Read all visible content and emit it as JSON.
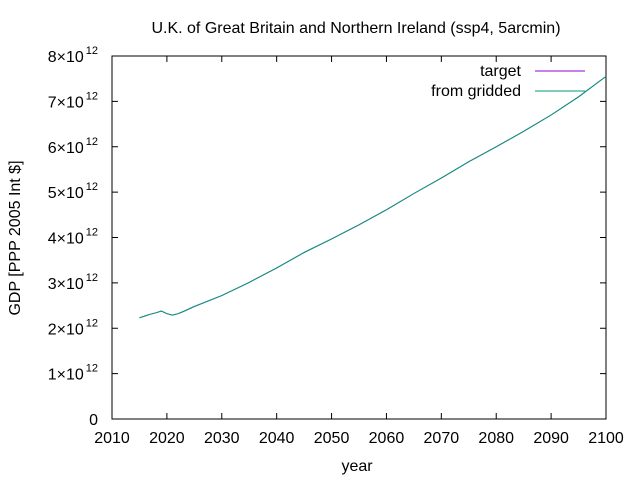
{
  "chart_data": {
    "type": "line",
    "title": "U.K. of Great Britain and Northern Ireland (ssp4, 5arcmin)",
    "xlabel": "year",
    "ylabel": "GDP [PPP 2005 Int $]",
    "xlim": [
      2010,
      2100
    ],
    "ylim": [
      0,
      8000000000000.0
    ],
    "x_ticks": [
      2010,
      2020,
      2030,
      2040,
      2050,
      2060,
      2070,
      2080,
      2090,
      2100
    ],
    "x_tick_labels": [
      "2010",
      "2020",
      "2030",
      "2040",
      "2050",
      "2060",
      "2070",
      "2080",
      "2090",
      "2100"
    ],
    "y_ticks": [
      0,
      1000000000000.0,
      2000000000000.0,
      3000000000000.0,
      4000000000000.0,
      5000000000000.0,
      6000000000000.0,
      7000000000000.0,
      8000000000000.0
    ],
    "y_tick_labels": [
      {
        "mantissa": "0",
        "exponent": ""
      },
      {
        "mantissa": "1×10",
        "exponent": "12"
      },
      {
        "mantissa": "2×10",
        "exponent": "12"
      },
      {
        "mantissa": "3×10",
        "exponent": "12"
      },
      {
        "mantissa": "4×10",
        "exponent": "12"
      },
      {
        "mantissa": "5×10",
        "exponent": "12"
      },
      {
        "mantissa": "6×10",
        "exponent": "12"
      },
      {
        "mantissa": "7×10",
        "exponent": "12"
      },
      {
        "mantissa": "8×10",
        "exponent": "12"
      }
    ],
    "grid": false,
    "legend_position": "top-right",
    "series": [
      {
        "name": "target",
        "color": "#9400d3",
        "x": [
          2015,
          2016,
          2017,
          2018,
          2019,
          2020,
          2021,
          2022,
          2023,
          2025,
          2030,
          2035,
          2040,
          2045,
          2050,
          2055,
          2060,
          2065,
          2070,
          2075,
          2080,
          2085,
          2090,
          2095,
          2100
        ],
        "y": [
          2230000000000.0,
          2270000000000.0,
          2310000000000.0,
          2340000000000.0,
          2380000000000.0,
          2320000000000.0,
          2290000000000.0,
          2320000000000.0,
          2370000000000.0,
          2480000000000.0,
          2720000000000.0,
          3010000000000.0,
          3330000000000.0,
          3670000000000.0,
          3970000000000.0,
          4280000000000.0,
          4610000000000.0,
          4970000000000.0,
          5310000000000.0,
          5670000000000.0,
          6000000000000.0,
          6340000000000.0,
          6700000000000.0,
          7100000000000.0,
          7550000000000.0
        ]
      },
      {
        "name": "from gridded",
        "color": "#009e73",
        "x": [
          2015,
          2016,
          2017,
          2018,
          2019,
          2020,
          2021,
          2022,
          2023,
          2025,
          2030,
          2035,
          2040,
          2045,
          2050,
          2055,
          2060,
          2065,
          2070,
          2075,
          2080,
          2085,
          2090,
          2095,
          2100
        ],
        "y": [
          2230000000000.0,
          2270000000000.0,
          2310000000000.0,
          2340000000000.0,
          2380000000000.0,
          2320000000000.0,
          2290000000000.0,
          2320000000000.0,
          2370000000000.0,
          2480000000000.0,
          2720000000000.0,
          3010000000000.0,
          3330000000000.0,
          3670000000000.0,
          3970000000000.0,
          4280000000000.0,
          4610000000000.0,
          4970000000000.0,
          5310000000000.0,
          5670000000000.0,
          6000000000000.0,
          6340000000000.0,
          6700000000000.0,
          7100000000000.0,
          7550000000000.0
        ]
      }
    ]
  }
}
